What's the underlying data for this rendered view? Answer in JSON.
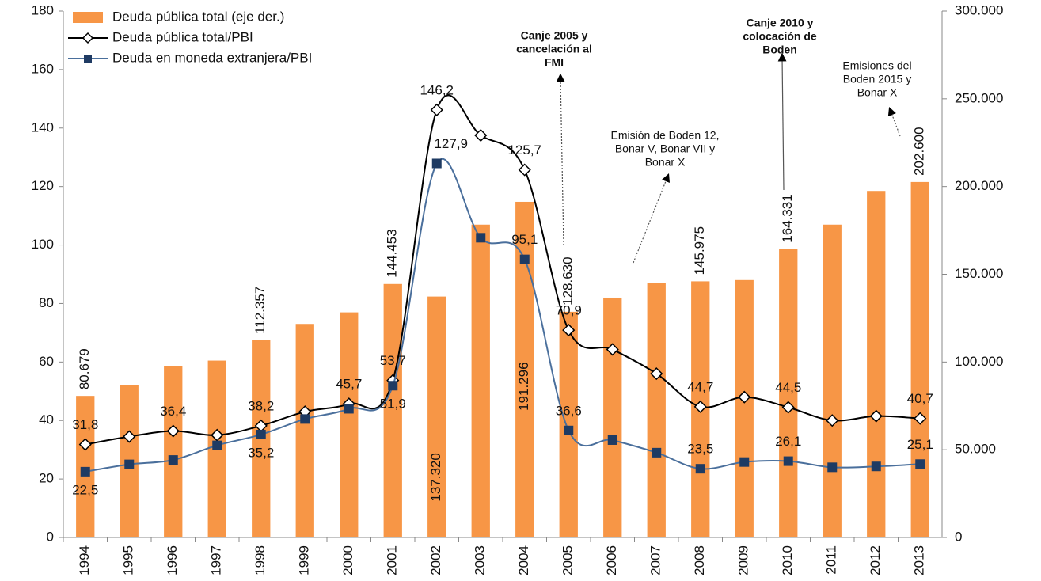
{
  "chart_data": {
    "type": "bar-line",
    "categories": [
      "1994",
      "1995",
      "1996",
      "1997",
      "1998",
      "1999",
      "2000",
      "2001",
      "2002",
      "2003",
      "2004",
      "2005",
      "2006",
      "2007",
      "2008",
      "2009",
      "2010",
      "2011",
      "2012",
      "2013"
    ],
    "ylim": [
      0,
      180
    ],
    "yticks": [
      0,
      20,
      40,
      60,
      80,
      100,
      120,
      140,
      160,
      180
    ],
    "y2lim": [
      0,
      300000
    ],
    "y2ticks": [
      {
        "value": 0,
        "label": "0"
      },
      {
        "value": 50000,
        "label": "50.000"
      },
      {
        "value": 100000,
        "label": "100.000"
      },
      {
        "value": 150000,
        "label": "150.000"
      },
      {
        "value": 200000,
        "label": "200.000"
      },
      {
        "value": 250000,
        "label": "250.000"
      },
      {
        "value": 300000,
        "label": "300.000"
      }
    ],
    "legend": "top-left",
    "series": [
      {
        "name": "Deuda pública total (eje der.)",
        "type": "bar",
        "axis": "y2",
        "color": "#f79646",
        "values": [
          80679,
          86700,
          97500,
          100800,
          112357,
          121700,
          128300,
          144453,
          137320,
          178300,
          191296,
          128630,
          136700,
          145000,
          145975,
          146700,
          164331,
          178300,
          197500,
          202600
        ],
        "value_labels": [
          "80.679",
          null,
          null,
          null,
          "112.357",
          null,
          null,
          "144.453",
          "137.320",
          null,
          "191.296",
          "128.630",
          null,
          null,
          "145.975",
          null,
          "164.331",
          null,
          null,
          "202.600"
        ]
      },
      {
        "name": "Deuda pública total/PBI",
        "type": "line",
        "color": "#000000",
        "values": [
          31.8,
          34.5,
          36.4,
          35,
          38.2,
          43,
          45.7,
          53.7,
          146.2,
          137.5,
          125.7,
          70.9,
          64.3,
          56,
          44.7,
          48,
          44.5,
          40,
          41.5,
          40.7
        ],
        "value_labels": [
          "31,8",
          null,
          "36,4",
          null,
          "38,2",
          null,
          "45,7",
          "53,7",
          "146,2",
          null,
          "125,7",
          "70,9",
          null,
          null,
          "44,7",
          null,
          "44,5",
          null,
          null,
          "40,7"
        ]
      },
      {
        "name": "Deuda en moneda extranjera/PBI",
        "type": "line",
        "color": "#1f3b63",
        "values": [
          22.5,
          25,
          26.5,
          31.5,
          35.2,
          40.5,
          44,
          51.9,
          127.9,
          102.5,
          95.1,
          36.6,
          33.3,
          29,
          23.5,
          25.8,
          26.1,
          24,
          24.3,
          25.1
        ],
        "value_labels": [
          "22,5",
          null,
          null,
          null,
          "35,2",
          null,
          null,
          "51,9",
          "127,9",
          null,
          "95,1",
          "36,6",
          null,
          null,
          "23,5",
          null,
          "26,1",
          null,
          null,
          "25,1"
        ]
      }
    ],
    "annotations": [
      {
        "lines": [
          "Canje 2005 y",
          "cancelación al",
          "FMI"
        ],
        "bold": true
      },
      {
        "lines": [
          "Canje 2010 y",
          "colocación de",
          "Boden"
        ],
        "bold": true
      },
      {
        "lines": [
          "Emisiones del",
          "Boden 2015 y",
          "Bonar X"
        ],
        "bold": false
      },
      {
        "lines": [
          "Emisión de Boden 12,",
          "Bonar V, Bonar VII y",
          "Bonar X"
        ],
        "bold": false
      }
    ]
  }
}
